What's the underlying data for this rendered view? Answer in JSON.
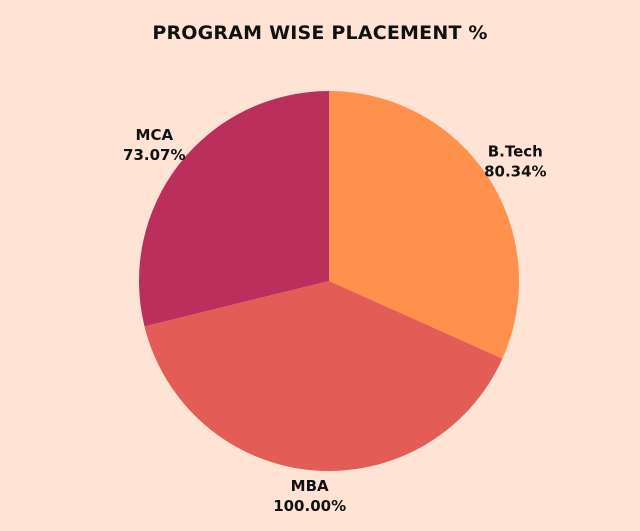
{
  "chart_data": {
    "type": "pie",
    "title": "PROGRAM WISE PLACEMENT %",
    "categories": [
      "B.Tech",
      "MBA",
      "MCA"
    ],
    "values": [
      80.34,
      100.0,
      73.07
    ],
    "value_labels": [
      "80.34%",
      "100.00%",
      "73.07%"
    ],
    "colors": [
      "#FF914D",
      "#E35D56",
      "#BA2F5B"
    ],
    "start_angle": "top",
    "direction": "clockwise",
    "legend": "none"
  }
}
